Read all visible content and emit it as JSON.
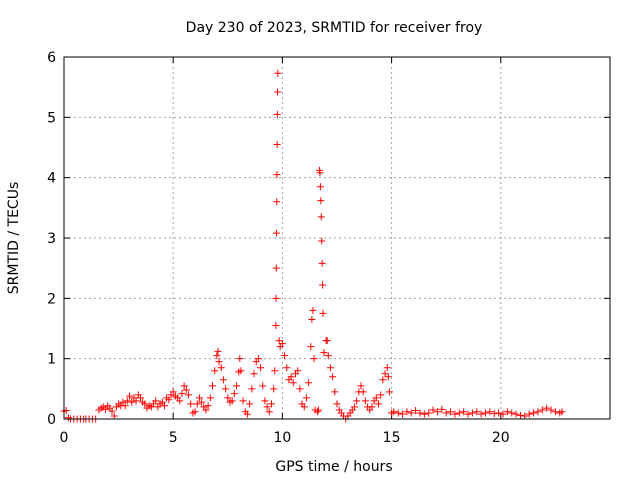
{
  "chart_data": {
    "type": "scatter",
    "title": "Day 230 of 2023, SRMTID for receiver froy",
    "xlabel": "GPS time / hours",
    "ylabel": "SRMTID / TECUs",
    "xlim": [
      0,
      25
    ],
    "ylim": [
      0,
      6
    ],
    "xticks": [
      0,
      5,
      10,
      15,
      20
    ],
    "yticks": [
      0,
      1,
      2,
      3,
      4,
      5,
      6
    ],
    "grid": true,
    "marker": "+",
    "color": "#ff0000",
    "series": [
      {
        "name": "SRMTID",
        "points": [
          [
            0.0,
            0.13
          ],
          [
            0.1,
            0.14
          ],
          [
            0.2,
            0.02
          ],
          [
            0.3,
            0.0
          ],
          [
            0.45,
            0.0
          ],
          [
            0.6,
            0.0
          ],
          [
            0.75,
            0.0
          ],
          [
            0.9,
            0.0
          ],
          [
            1.0,
            0.0
          ],
          [
            1.15,
            0.0
          ],
          [
            1.3,
            0.0
          ],
          [
            1.45,
            0.0
          ],
          [
            1.6,
            0.15
          ],
          [
            1.7,
            0.18
          ],
          [
            1.8,
            0.2
          ],
          [
            1.9,
            0.16
          ],
          [
            2.0,
            0.22
          ],
          [
            2.1,
            0.18
          ],
          [
            2.2,
            0.13
          ],
          [
            2.3,
            0.05
          ],
          [
            2.4,
            0.2
          ],
          [
            2.5,
            0.25
          ],
          [
            2.6,
            0.22
          ],
          [
            2.7,
            0.28
          ],
          [
            2.8,
            0.22
          ],
          [
            2.9,
            0.3
          ],
          [
            3.0,
            0.38
          ],
          [
            3.1,
            0.28
          ],
          [
            3.2,
            0.35
          ],
          [
            3.3,
            0.3
          ],
          [
            3.4,
            0.4
          ],
          [
            3.5,
            0.35
          ],
          [
            3.6,
            0.28
          ],
          [
            3.7,
            0.25
          ],
          [
            3.8,
            0.18
          ],
          [
            3.9,
            0.22
          ],
          [
            4.0,
            0.2
          ],
          [
            4.1,
            0.25
          ],
          [
            4.2,
            0.3
          ],
          [
            4.3,
            0.2
          ],
          [
            4.4,
            0.25
          ],
          [
            4.5,
            0.28
          ],
          [
            4.6,
            0.22
          ],
          [
            4.7,
            0.35
          ],
          [
            4.8,
            0.32
          ],
          [
            4.9,
            0.4
          ],
          [
            5.0,
            0.45
          ],
          [
            5.1,
            0.38
          ],
          [
            5.2,
            0.35
          ],
          [
            5.3,
            0.3
          ],
          [
            5.4,
            0.42
          ],
          [
            5.5,
            0.55
          ],
          [
            5.6,
            0.48
          ],
          [
            5.7,
            0.4
          ],
          [
            5.8,
            0.25
          ],
          [
            5.9,
            0.1
          ],
          [
            6.0,
            0.12
          ],
          [
            6.1,
            0.25
          ],
          [
            6.2,
            0.35
          ],
          [
            6.3,
            0.28
          ],
          [
            6.4,
            0.2
          ],
          [
            6.5,
            0.15
          ],
          [
            6.6,
            0.22
          ],
          [
            6.7,
            0.35
          ],
          [
            6.8,
            0.55
          ],
          [
            6.9,
            0.8
          ],
          [
            7.0,
            1.05
          ],
          [
            7.05,
            1.12
          ],
          [
            7.1,
            0.95
          ],
          [
            7.2,
            0.85
          ],
          [
            7.3,
            0.65
          ],
          [
            7.4,
            0.5
          ],
          [
            7.5,
            0.35
          ],
          [
            7.6,
            0.28
          ],
          [
            7.7,
            0.3
          ],
          [
            7.8,
            0.42
          ],
          [
            7.9,
            0.55
          ],
          [
            8.0,
            0.78
          ],
          [
            8.05,
            1.0
          ],
          [
            8.1,
            0.8
          ],
          [
            8.2,
            0.3
          ],
          [
            8.3,
            0.12
          ],
          [
            8.4,
            0.08
          ],
          [
            8.5,
            0.25
          ],
          [
            8.6,
            0.5
          ],
          [
            8.7,
            0.75
          ],
          [
            8.8,
            0.95
          ],
          [
            8.9,
            1.0
          ],
          [
            9.0,
            0.85
          ],
          [
            9.1,
            0.55
          ],
          [
            9.2,
            0.3
          ],
          [
            9.3,
            0.2
          ],
          [
            9.4,
            0.12
          ],
          [
            9.5,
            0.25
          ],
          [
            9.6,
            0.5
          ],
          [
            9.65,
            0.8
          ],
          [
            9.7,
            1.55
          ],
          [
            9.71,
            2.0
          ],
          [
            9.72,
            2.5
          ],
          [
            9.73,
            3.08
          ],
          [
            9.74,
            3.6
          ],
          [
            9.75,
            4.05
          ],
          [
            9.76,
            4.55
          ],
          [
            9.77,
            5.05
          ],
          [
            9.78,
            5.42
          ],
          [
            9.79,
            5.73
          ],
          [
            9.85,
            1.3
          ],
          [
            9.9,
            1.2
          ],
          [
            10.0,
            1.25
          ],
          [
            10.1,
            1.05
          ],
          [
            10.2,
            0.85
          ],
          [
            10.3,
            0.65
          ],
          [
            10.4,
            0.7
          ],
          [
            10.5,
            0.6
          ],
          [
            10.6,
            0.75
          ],
          [
            10.7,
            0.8
          ],
          [
            10.8,
            0.5
          ],
          [
            10.9,
            0.25
          ],
          [
            11.0,
            0.2
          ],
          [
            11.1,
            0.35
          ],
          [
            11.2,
            0.6
          ],
          [
            11.3,
            1.2
          ],
          [
            11.35,
            1.65
          ],
          [
            11.4,
            1.8
          ],
          [
            11.45,
            1.0
          ],
          [
            11.5,
            0.15
          ],
          [
            11.6,
            0.12
          ],
          [
            11.65,
            0.15
          ],
          [
            11.7,
            4.12
          ],
          [
            11.72,
            4.08
          ],
          [
            11.74,
            3.85
          ],
          [
            11.76,
            3.62
          ],
          [
            11.78,
            3.35
          ],
          [
            11.8,
            2.95
          ],
          [
            11.82,
            2.58
          ],
          [
            11.84,
            2.22
          ],
          [
            11.86,
            1.75
          ],
          [
            11.9,
            1.1
          ],
          [
            12.0,
            1.3
          ],
          [
            12.05,
            1.3
          ],
          [
            12.1,
            1.05
          ],
          [
            12.2,
            0.85
          ],
          [
            12.3,
            0.7
          ],
          [
            12.4,
            0.45
          ],
          [
            12.5,
            0.25
          ],
          [
            12.6,
            0.15
          ],
          [
            12.7,
            0.1
          ],
          [
            12.8,
            0.05
          ],
          [
            12.9,
            0.0
          ],
          [
            13.0,
            0.05
          ],
          [
            13.1,
            0.1
          ],
          [
            13.2,
            0.15
          ],
          [
            13.3,
            0.2
          ],
          [
            13.4,
            0.3
          ],
          [
            13.5,
            0.45
          ],
          [
            13.6,
            0.55
          ],
          [
            13.7,
            0.45
          ],
          [
            13.8,
            0.3
          ],
          [
            13.9,
            0.2
          ],
          [
            14.0,
            0.15
          ],
          [
            14.1,
            0.2
          ],
          [
            14.2,
            0.3
          ],
          [
            14.3,
            0.35
          ],
          [
            14.4,
            0.25
          ],
          [
            14.5,
            0.4
          ],
          [
            14.6,
            0.65
          ],
          [
            14.7,
            0.75
          ],
          [
            14.8,
            0.85
          ],
          [
            14.85,
            0.7
          ],
          [
            14.9,
            0.45
          ],
          [
            15.0,
            0.1
          ],
          [
            15.1,
            0.12
          ],
          [
            15.3,
            0.1
          ],
          [
            15.5,
            0.08
          ],
          [
            15.7,
            0.12
          ],
          [
            15.9,
            0.1
          ],
          [
            16.1,
            0.14
          ],
          [
            16.3,
            0.1
          ],
          [
            16.5,
            0.08
          ],
          [
            16.7,
            0.1
          ],
          [
            16.9,
            0.15
          ],
          [
            17.1,
            0.12
          ],
          [
            17.3,
            0.16
          ],
          [
            17.5,
            0.1
          ],
          [
            17.7,
            0.12
          ],
          [
            17.9,
            0.08
          ],
          [
            18.1,
            0.1
          ],
          [
            18.3,
            0.12
          ],
          [
            18.5,
            0.08
          ],
          [
            18.7,
            0.1
          ],
          [
            18.9,
            0.12
          ],
          [
            19.1,
            0.08
          ],
          [
            19.3,
            0.1
          ],
          [
            19.5,
            0.12
          ],
          [
            19.7,
            0.09
          ],
          [
            19.9,
            0.1
          ],
          [
            20.1,
            0.08
          ],
          [
            20.3,
            0.12
          ],
          [
            20.5,
            0.1
          ],
          [
            20.7,
            0.08
          ],
          [
            20.9,
            0.06
          ],
          [
            21.1,
            0.05
          ],
          [
            21.3,
            0.08
          ],
          [
            21.5,
            0.1
          ],
          [
            21.7,
            0.12
          ],
          [
            21.9,
            0.15
          ],
          [
            22.1,
            0.18
          ],
          [
            22.3,
            0.15
          ],
          [
            22.5,
            0.12
          ],
          [
            22.7,
            0.1
          ],
          [
            22.8,
            0.12
          ]
        ]
      }
    ]
  }
}
